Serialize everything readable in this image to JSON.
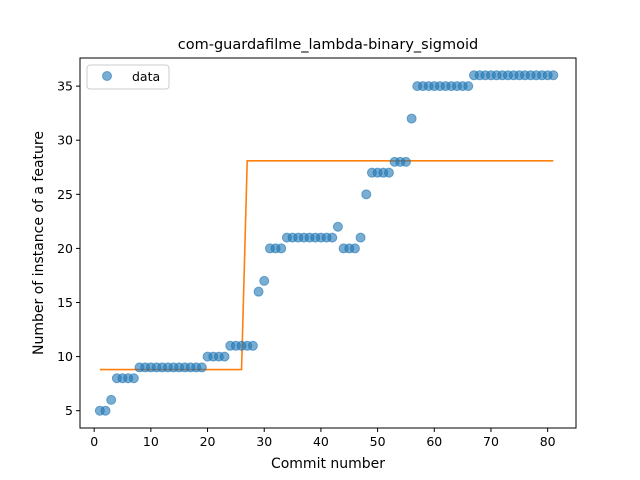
{
  "chart_data": {
    "type": "scatter",
    "title": "com-guardafilme_lambda-binary_sigmoid",
    "xlabel": "Commit number",
    "ylabel": "Number of instance of a feature",
    "xlim": [
      -2.5,
      85
    ],
    "ylim": [
      3.4,
      37.6
    ],
    "xticks": [
      0,
      10,
      20,
      30,
      40,
      50,
      60,
      70,
      80
    ],
    "yticks": [
      5,
      10,
      15,
      20,
      25,
      30,
      35
    ],
    "grid": false,
    "legend": {
      "position": "top-left",
      "entries": [
        "data"
      ]
    },
    "colors": {
      "data": "#1f77b4",
      "fit": "#ff7f0e"
    },
    "series": [
      {
        "name": "data",
        "kind": "scatter",
        "x": [
          1,
          2,
          3,
          4,
          5,
          6,
          7,
          8,
          9,
          10,
          11,
          12,
          13,
          14,
          15,
          16,
          17,
          18,
          19,
          20,
          21,
          22,
          23,
          24,
          25,
          26,
          27,
          28,
          29,
          30,
          31,
          32,
          33,
          34,
          35,
          36,
          37,
          38,
          39,
          40,
          41,
          42,
          43,
          44,
          45,
          46,
          47,
          48,
          49,
          50,
          51,
          52,
          53,
          54,
          55,
          56,
          57,
          58,
          59,
          60,
          61,
          62,
          63,
          64,
          65,
          66,
          67,
          68,
          69,
          70,
          71,
          72,
          73,
          74,
          75,
          76,
          77,
          78,
          79,
          80,
          81
        ],
        "y": [
          5,
          5,
          6,
          8,
          8,
          8,
          8,
          9,
          9,
          9,
          9,
          9,
          9,
          9,
          9,
          9,
          9,
          9,
          9,
          10,
          10,
          10,
          10,
          11,
          11,
          11,
          11,
          11,
          16,
          17,
          20,
          20,
          20,
          21,
          21,
          21,
          21,
          21,
          21,
          21,
          21,
          21,
          22,
          20,
          20,
          20,
          21,
          25,
          27,
          27,
          27,
          27,
          28,
          28,
          28,
          32,
          35,
          35,
          35,
          35,
          35,
          35,
          35,
          35,
          35,
          35,
          36,
          36,
          36,
          36,
          36,
          36,
          36,
          36,
          36,
          36,
          36,
          36,
          36,
          36,
          36
        ]
      },
      {
        "name": "",
        "kind": "line",
        "x": [
          1,
          2,
          3,
          4,
          5,
          6,
          7,
          8,
          9,
          10,
          11,
          12,
          13,
          14,
          15,
          16,
          17,
          18,
          19,
          20,
          21,
          22,
          23,
          24,
          25,
          26,
          27,
          28,
          29,
          30,
          31,
          32,
          33,
          34,
          35,
          36,
          37,
          38,
          39,
          40,
          41,
          42,
          43,
          44,
          45,
          46,
          47,
          48,
          49,
          50,
          51,
          52,
          53,
          54,
          55,
          56,
          57,
          58,
          59,
          60,
          61,
          62,
          63,
          64,
          65,
          66,
          67,
          68,
          69,
          70,
          71,
          72,
          73,
          74,
          75,
          76,
          77,
          78,
          79,
          80,
          81
        ],
        "y": [
          8.8,
          8.8,
          8.8,
          8.8,
          8.8,
          8.8,
          8.8,
          8.8,
          8.8,
          8.8,
          8.8,
          8.8,
          8.8,
          8.8,
          8.8,
          8.8,
          8.8,
          8.8,
          8.8,
          8.8,
          8.8,
          8.8,
          8.8,
          8.8,
          8.8,
          8.8,
          28.1,
          28.1,
          28.1,
          28.1,
          28.1,
          28.1,
          28.1,
          28.1,
          28.1,
          28.1,
          28.1,
          28.1,
          28.1,
          28.1,
          28.1,
          28.1,
          28.1,
          28.1,
          28.1,
          28.1,
          28.1,
          28.1,
          28.1,
          28.1,
          28.1,
          28.1,
          28.1,
          28.1,
          28.1,
          28.1,
          28.1,
          28.1,
          28.1,
          28.1,
          28.1,
          28.1,
          28.1,
          28.1,
          28.1,
          28.1,
          28.1,
          28.1,
          28.1,
          28.1,
          28.1,
          28.1,
          28.1,
          28.1,
          28.1,
          28.1,
          28.1,
          28.1,
          28.1,
          28.1,
          28.1
        ]
      }
    ]
  }
}
